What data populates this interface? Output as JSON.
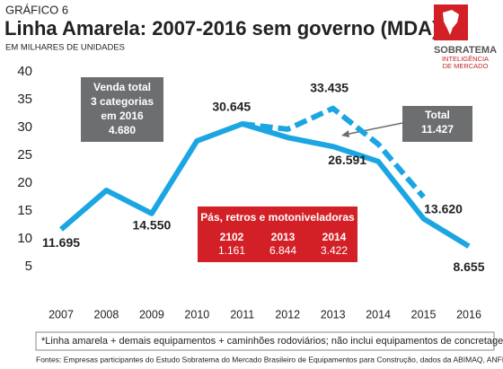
{
  "chart_data": {
    "type": "line",
    "kicker": "GRÁFICO 6",
    "title": "Linha Amarela: 2007-2016 sem governo (MDA)",
    "subtitle": "EM MILHARES DE UNIDADES",
    "logo": {
      "name": "SOBRATEMA",
      "tagline": [
        "INTELIGÊNCIA",
        "DE MERCADO"
      ]
    },
    "categories": [
      "2007",
      "2008",
      "2009",
      "2010",
      "2011",
      "2012",
      "2013",
      "2014",
      "2015",
      "2016"
    ],
    "series": [
      {
        "color": "#1ba6e3",
        "style": "solid",
        "values": [
          11.695,
          18.7,
          14.55,
          27.6,
          30.645,
          28.2,
          26.591,
          23.9,
          13.62,
          8.655
        ],
        "value_labels": [
          "11.695",
          null,
          "14.550",
          null,
          "30.645",
          null,
          "26.591",
          null,
          "13.620",
          "8.655"
        ]
      },
      {
        "color": "#1ba6e3",
        "style": "dashed",
        "values": [
          null,
          null,
          null,
          null,
          30.645,
          29.7,
          33.435,
          27.0,
          17.5,
          null
        ],
        "value_labels": [
          null,
          null,
          null,
          null,
          null,
          null,
          "33.435",
          null,
          null,
          null
        ]
      }
    ],
    "ylim": [
      0,
      40
    ],
    "yticks": [
      5,
      10,
      15,
      20,
      25,
      30,
      35,
      40
    ],
    "grid": false,
    "annotations": {
      "sales_box": [
        "Venda total",
        "3 categorias",
        "em 2016",
        "4.680"
      ],
      "total_box": [
        "Total",
        "11.427"
      ],
      "red_box": {
        "title": "Pás, retros e motoniveladoras",
        "years": [
          "2102",
          "2013",
          "2014"
        ],
        "values": [
          "1.161",
          "6.844",
          "3.422"
        ]
      }
    },
    "footnote": "*Linha amarela + demais equipamentos + caminhões rodoviários;  não inclui equipamentos de concretagem",
    "source": "Fontes: Empresas participantes do Estudo Sobratema do Mercado Brasileiro de  Equipamentos para Construção, dados da ABIMAQ, ANFIR, ANFAVEA e MDA"
  }
}
